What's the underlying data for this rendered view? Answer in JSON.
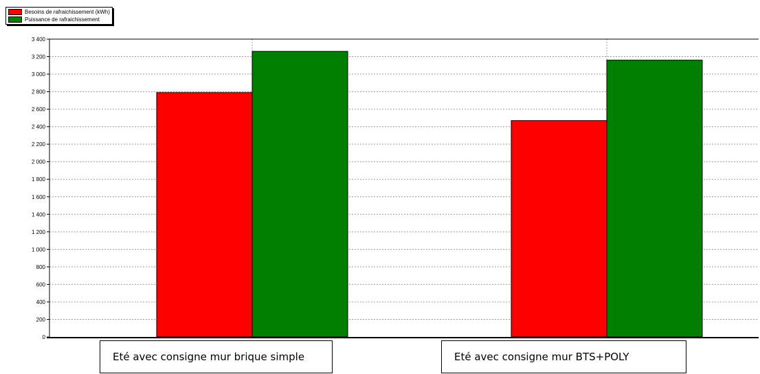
{
  "chart_data": {
    "type": "bar",
    "categories": [
      "Eté avec consigne mur brique simple",
      "Eté avec consigne mur BTS+POLY"
    ],
    "series": [
      {
        "name": "Besoins de rafraichissement (kWh)",
        "color": "#ff0000",
        "values": [
          2790,
          2470
        ]
      },
      {
        "name": "Puissance de rafraichissement",
        "color": "#008000",
        "values": [
          3260,
          3160
        ]
      }
    ],
    "ylim": [
      0,
      3400
    ],
    "yticks": [
      "0",
      "200",
      "400",
      "600",
      "800",
      "1 000",
      "1 200",
      "1 400",
      "1 600",
      "1 800",
      "2 000",
      "2 200",
      "2 400",
      "2 600",
      "2 800",
      "3 000",
      "3 200",
      "3 400"
    ],
    "grid": true,
    "legend_position": "top-left",
    "title": "",
    "xlabel": "",
    "ylabel": ""
  }
}
